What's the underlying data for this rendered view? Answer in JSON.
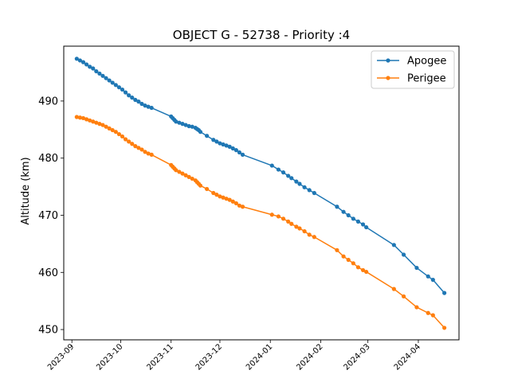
{
  "chart_data": {
    "type": "line",
    "title": "OBJECT G - 52738 - Priority :4",
    "xlabel": "",
    "ylabel": "Altitude (km)",
    "ylim": [
      448.2,
      499.6
    ],
    "xlim": [
      "2023-08-27",
      "2024-04-26"
    ],
    "yticks": [
      450,
      460,
      470,
      480,
      490
    ],
    "xticks": [
      "2023-09",
      "2023-10",
      "2023-11",
      "2023-12",
      "2024-01",
      "2024-02",
      "2024-03",
      "2024-04"
    ],
    "grid": false,
    "legend_position": "top-right",
    "series": [
      {
        "name": "Apogee",
        "color": "#1f77b4",
        "marker": "circle",
        "points": [
          [
            "2023-09-04",
            497.4
          ],
          [
            "2023-09-06",
            497.1
          ],
          [
            "2023-09-08",
            496.8
          ],
          [
            "2023-09-10",
            496.4
          ],
          [
            "2023-09-12",
            496.0
          ],
          [
            "2023-09-14",
            495.7
          ],
          [
            "2023-09-16",
            495.2
          ],
          [
            "2023-09-18",
            494.8
          ],
          [
            "2023-09-20",
            494.4
          ],
          [
            "2023-09-22",
            494.0
          ],
          [
            "2023-09-24",
            493.6
          ],
          [
            "2023-09-26",
            493.2
          ],
          [
            "2023-09-28",
            492.8
          ],
          [
            "2023-09-30",
            492.4
          ],
          [
            "2023-10-02",
            492.0
          ],
          [
            "2023-10-04",
            491.5
          ],
          [
            "2023-10-06",
            491.0
          ],
          [
            "2023-10-08",
            490.6
          ],
          [
            "2023-10-10",
            490.2
          ],
          [
            "2023-10-12",
            489.9
          ],
          [
            "2023-10-14",
            489.5
          ],
          [
            "2023-10-16",
            489.2
          ],
          [
            "2023-10-18",
            489.0
          ],
          [
            "2023-10-20",
            488.8
          ],
          [
            "2023-11-01",
            487.3
          ],
          [
            "2023-11-02",
            487.0
          ],
          [
            "2023-11-03",
            486.7
          ],
          [
            "2023-11-04",
            486.4
          ],
          [
            "2023-11-06",
            486.2
          ],
          [
            "2023-11-08",
            486.0
          ],
          [
            "2023-11-10",
            485.8
          ],
          [
            "2023-11-12",
            485.6
          ],
          [
            "2023-11-14",
            485.5
          ],
          [
            "2023-11-16",
            485.3
          ],
          [
            "2023-11-17",
            485.1
          ],
          [
            "2023-11-18",
            484.9
          ],
          [
            "2023-11-19",
            484.6
          ],
          [
            "2023-11-23",
            483.9
          ],
          [
            "2023-11-27",
            483.2
          ],
          [
            "2023-11-29",
            482.9
          ],
          [
            "2023-12-01",
            482.6
          ],
          [
            "2023-12-03",
            482.4
          ],
          [
            "2023-12-05",
            482.2
          ],
          [
            "2023-12-07",
            482.0
          ],
          [
            "2023-12-09",
            481.7
          ],
          [
            "2023-12-11",
            481.4
          ],
          [
            "2023-12-13",
            481.0
          ],
          [
            "2023-12-15",
            480.6
          ],
          [
            "2024-01-02",
            478.7
          ],
          [
            "2024-01-06",
            478.0
          ],
          [
            "2024-01-09",
            477.5
          ],
          [
            "2024-01-12",
            476.9
          ],
          [
            "2024-01-14",
            476.5
          ],
          [
            "2024-01-17",
            475.9
          ],
          [
            "2024-01-19",
            475.5
          ],
          [
            "2024-01-22",
            474.9
          ],
          [
            "2024-01-25",
            474.4
          ],
          [
            "2024-01-28",
            473.9
          ],
          [
            "2024-02-11",
            471.5
          ],
          [
            "2024-02-15",
            470.6
          ],
          [
            "2024-02-18",
            470.0
          ],
          [
            "2024-02-21",
            469.4
          ],
          [
            "2024-02-24",
            468.9
          ],
          [
            "2024-02-27",
            468.4
          ],
          [
            "2024-02-29",
            467.9
          ],
          [
            "2024-03-17",
            464.8
          ],
          [
            "2024-03-23",
            463.1
          ],
          [
            "2024-03-31",
            460.8
          ],
          [
            "2024-04-07",
            459.3
          ],
          [
            "2024-04-10",
            458.7
          ],
          [
            "2024-04-17",
            456.4
          ]
        ]
      },
      {
        "name": "Perigee",
        "color": "#ff7f0e",
        "marker": "circle",
        "points": [
          [
            "2023-09-04",
            487.2
          ],
          [
            "2023-09-06",
            487.1
          ],
          [
            "2023-09-08",
            487.0
          ],
          [
            "2023-09-10",
            486.8
          ],
          [
            "2023-09-12",
            486.6
          ],
          [
            "2023-09-14",
            486.4
          ],
          [
            "2023-09-16",
            486.2
          ],
          [
            "2023-09-18",
            486.0
          ],
          [
            "2023-09-20",
            485.8
          ],
          [
            "2023-09-22",
            485.5
          ],
          [
            "2023-09-24",
            485.2
          ],
          [
            "2023-09-26",
            484.9
          ],
          [
            "2023-09-28",
            484.6
          ],
          [
            "2023-09-30",
            484.2
          ],
          [
            "2023-10-02",
            483.8
          ],
          [
            "2023-10-04",
            483.3
          ],
          [
            "2023-10-06",
            482.9
          ],
          [
            "2023-10-08",
            482.5
          ],
          [
            "2023-10-10",
            482.1
          ],
          [
            "2023-10-12",
            481.8
          ],
          [
            "2023-10-14",
            481.5
          ],
          [
            "2023-10-16",
            481.1
          ],
          [
            "2023-10-18",
            480.8
          ],
          [
            "2023-10-20",
            480.6
          ],
          [
            "2023-11-01",
            478.8
          ],
          [
            "2023-11-02",
            478.5
          ],
          [
            "2023-11-03",
            478.2
          ],
          [
            "2023-11-04",
            477.9
          ],
          [
            "2023-11-06",
            477.6
          ],
          [
            "2023-11-08",
            477.3
          ],
          [
            "2023-11-10",
            477.0
          ],
          [
            "2023-11-12",
            476.7
          ],
          [
            "2023-11-14",
            476.4
          ],
          [
            "2023-11-16",
            476.1
          ],
          [
            "2023-11-17",
            475.8
          ],
          [
            "2023-11-18",
            475.5
          ],
          [
            "2023-11-19",
            475.2
          ],
          [
            "2023-11-23",
            474.6
          ],
          [
            "2023-11-27",
            473.9
          ],
          [
            "2023-11-29",
            473.6
          ],
          [
            "2023-12-01",
            473.3
          ],
          [
            "2023-12-03",
            473.1
          ],
          [
            "2023-12-05",
            472.9
          ],
          [
            "2023-12-07",
            472.7
          ],
          [
            "2023-12-09",
            472.4
          ],
          [
            "2023-12-11",
            472.1
          ],
          [
            "2023-12-13",
            471.7
          ],
          [
            "2023-12-15",
            471.5
          ],
          [
            "2024-01-02",
            470.1
          ],
          [
            "2024-01-06",
            469.8
          ],
          [
            "2024-01-09",
            469.4
          ],
          [
            "2024-01-12",
            468.9
          ],
          [
            "2024-01-14",
            468.5
          ],
          [
            "2024-01-17",
            468.0
          ],
          [
            "2024-01-19",
            467.7
          ],
          [
            "2024-01-22",
            467.2
          ],
          [
            "2024-01-25",
            466.6
          ],
          [
            "2024-01-28",
            466.2
          ],
          [
            "2024-02-11",
            463.9
          ],
          [
            "2024-02-15",
            462.8
          ],
          [
            "2024-02-18",
            462.2
          ],
          [
            "2024-02-21",
            461.6
          ],
          [
            "2024-02-24",
            460.9
          ],
          [
            "2024-02-27",
            460.4
          ],
          [
            "2024-02-29",
            460.1
          ],
          [
            "2024-03-17",
            457.1
          ],
          [
            "2024-03-23",
            455.8
          ],
          [
            "2024-03-31",
            453.9
          ],
          [
            "2024-04-07",
            452.9
          ],
          [
            "2024-04-10",
            452.5
          ],
          [
            "2024-04-17",
            450.3
          ]
        ]
      }
    ]
  }
}
